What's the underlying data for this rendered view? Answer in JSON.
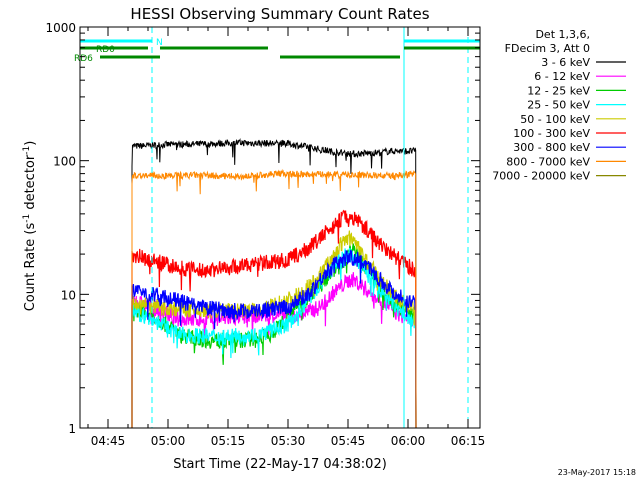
{
  "chart_data": {
    "type": "line",
    "title": "HESSI Observing Summary Count Rates",
    "xlabel": "Start Time (22-May-17 04:38:02)",
    "ylabel_main": "Count Rate (s",
    "ylabel_sup1": "-1",
    "ylabel_mid": " detector",
    "ylabel_sup2": "-1",
    "ylabel_end": ")",
    "yscale": "log",
    "ylim": [
      1,
      1000
    ],
    "xlim_minutes": [
      0,
      100
    ],
    "x_ticks": [
      {
        "label": "04:45",
        "minute": 7
      },
      {
        "label": "05:00",
        "minute": 22
      },
      {
        "label": "05:15",
        "minute": 37
      },
      {
        "label": "05:30",
        "minute": 52
      },
      {
        "label": "05:45",
        "minute": 67
      },
      {
        "label": "06:00",
        "minute": 82
      },
      {
        "label": "06:15",
        "minute": 97
      }
    ],
    "y_ticks": [
      {
        "label": "1",
        "value": 1
      },
      {
        "label": "10",
        "value": 10
      },
      {
        "label": "100",
        "value": 100
      },
      {
        "label": "1000",
        "value": 1000
      }
    ],
    "legend_header": [
      "Det 1,3,6,",
      "FDecim 3, Att 0"
    ],
    "series": [
      {
        "name": "3 - 6 keV",
        "color": "#000000",
        "x": [
          13,
          22,
          30,
          40,
          52,
          58,
          63,
          68,
          73,
          78,
          84
        ],
        "y": [
          128,
          132,
          133,
          136,
          134,
          125,
          117,
          112,
          114,
          118,
          118
        ]
      },
      {
        "name": "6 - 12 keV",
        "color": "#ff00ff",
        "x": [
          13,
          18,
          25,
          35,
          45,
          55,
          60,
          63,
          66,
          68,
          70,
          73,
          76,
          80,
          84
        ],
        "y": [
          9,
          8,
          6.5,
          6.5,
          7,
          7,
          8,
          10,
          12,
          13,
          12,
          10,
          8.5,
          7,
          6.5
        ]
      },
      {
        "name": "12 - 25 keV",
        "color": "#00cc00",
        "x": [
          13,
          18,
          25,
          32,
          40,
          48,
          52,
          56,
          60,
          63,
          66,
          68,
          70,
          73,
          76,
          80,
          84
        ],
        "y": [
          8,
          7,
          5,
          4.5,
          4.5,
          5,
          7,
          9,
          12,
          15,
          18,
          22,
          18,
          14,
          10,
          8,
          6.5
        ]
      },
      {
        "name": "25 - 50 keV",
        "color": "#00ffff",
        "x": [
          13,
          18,
          25,
          35,
          45,
          52,
          57,
          61,
          64,
          67,
          69,
          72,
          76,
          80,
          84
        ],
        "y": [
          7.5,
          6.5,
          5,
          4.8,
          5,
          6,
          9,
          13,
          17,
          20,
          18,
          14,
          10,
          7.5,
          6
        ]
      },
      {
        "name": "50 - 100 keV",
        "color": "#cccc00",
        "x": [
          13,
          20,
          30,
          45,
          55,
          60,
          64,
          67,
          69,
          72,
          76,
          80,
          84
        ],
        "y": [
          8.5,
          8,
          7.5,
          7.5,
          10,
          14,
          21,
          27,
          24,
          17,
          12,
          9,
          8
        ]
      },
      {
        "name": "100 - 300 keV",
        "color": "#ff0000",
        "x": [
          13,
          18,
          24,
          30,
          38,
          45,
          52,
          56,
          60,
          63,
          66,
          69,
          72,
          75,
          78,
          81,
          84
        ],
        "y": [
          20,
          18,
          16,
          15,
          16,
          17,
          18,
          21,
          26,
          32,
          38,
          37,
          30,
          24,
          20,
          17,
          15
        ]
      },
      {
        "name": "300 - 800 keV",
        "color": "#0000ff",
        "x": [
          13,
          18,
          24,
          30,
          38,
          45,
          52,
          57,
          61,
          64,
          67,
          70,
          73,
          76,
          79,
          82,
          84
        ],
        "y": [
          10.5,
          10,
          9,
          8,
          7.5,
          7.5,
          8,
          10,
          14,
          17,
          19,
          18,
          15,
          12,
          10,
          9,
          8.5
        ]
      },
      {
        "name": "800 - 7000 keV",
        "color": "#ff8800",
        "x": [
          13,
          20,
          30,
          40,
          50,
          60,
          70,
          78,
          84
        ],
        "y": [
          78,
          77,
          78,
          76,
          80,
          79,
          78,
          77,
          80
        ]
      },
      {
        "name": "7000 - 20000 keV",
        "color": "#888800",
        "x": [],
        "y": []
      }
    ],
    "state_bars": [
      {
        "label": "N",
        "color": "#00ffff",
        "segments": [
          [
            0,
            18
          ],
          [
            81,
            100
          ]
        ]
      },
      {
        "label": "RD0",
        "color": "#008800",
        "segments": [
          [
            0,
            17
          ],
          [
            20,
            47
          ],
          [
            81,
            100
          ]
        ]
      },
      {
        "label": "RD6",
        "color": "#008800",
        "segments": [
          [
            5,
            20
          ],
          [
            50,
            80
          ]
        ]
      }
    ],
    "vlines": [
      {
        "minute": 0,
        "color": "#00ffff",
        "dashed": false
      },
      {
        "minute": 18,
        "color": "#00ffff",
        "dashed": true
      },
      {
        "minute": 81,
        "color": "#00ffff",
        "dashed": false
      },
      {
        "minute": 97,
        "color": "#00ffff",
        "dashed": true
      }
    ],
    "grid": false,
    "legend_position": "top-right"
  },
  "footer_timestamp": "23-May-2017 15:18"
}
